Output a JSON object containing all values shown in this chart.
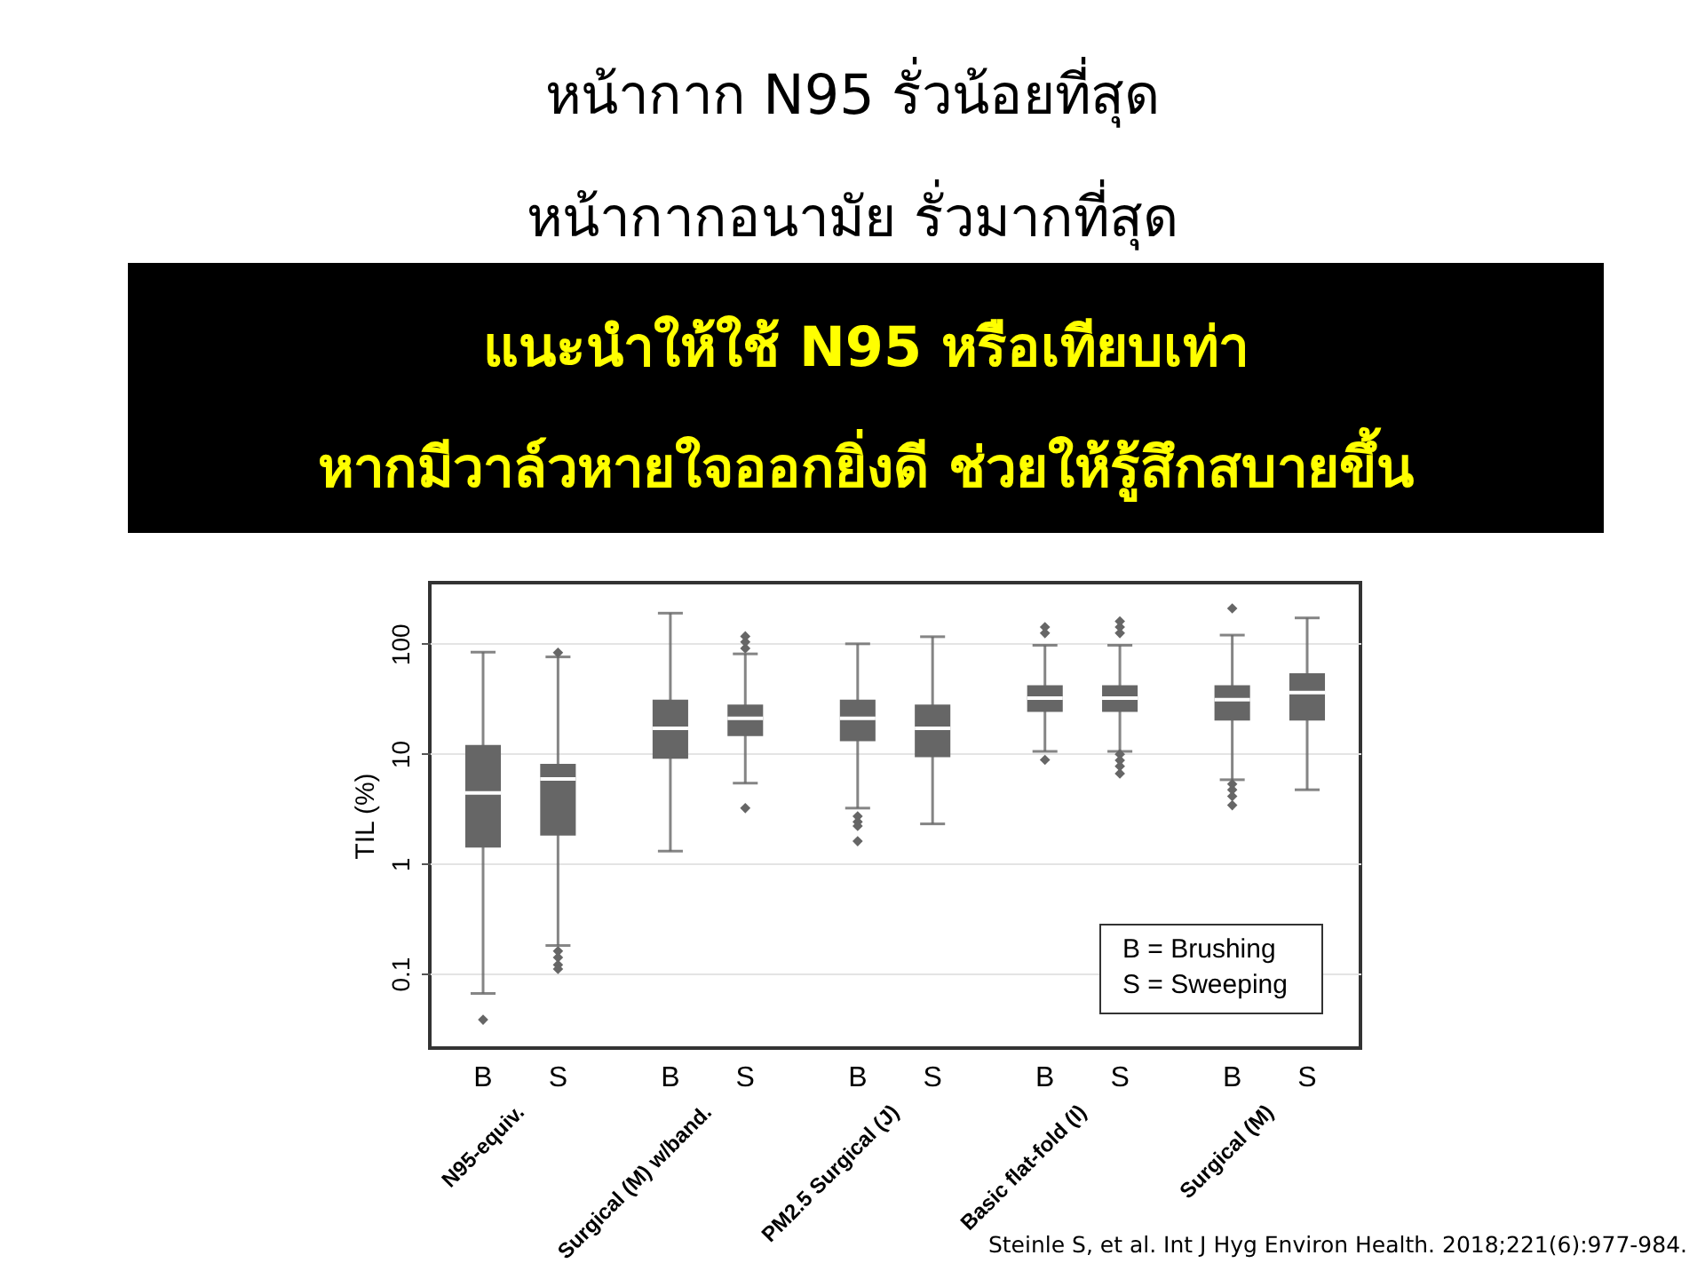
{
  "chart_data": {
    "type": "box",
    "title": "หน้ากาก N95 รั่วน้อยที่สุด",
    "subtitle": "หน้ากากอนามัย รั่วมากที่สุด",
    "ylabel": "TIL (%)",
    "categories": [
      "B",
      "S",
      "B",
      "S",
      "B",
      "S",
      "B",
      "S",
      "B",
      "S"
    ],
    "series": [
      {
        "color": "#666666",
        "boxes": [
          {
            "low": 0.066,
            "q1": 1.4,
            "median": 4.4,
            "q3": 12,
            "high": 84,
            "outliers": [
              0.038
            ]
          },
          {
            "low": 0.18,
            "q1": 1.8,
            "median": 5.9,
            "q3": 8.1,
            "high": 76,
            "outliers": [
              83,
              0.16,
              0.14,
              0.12,
              0.11
            ]
          },
          {
            "low": 1.3,
            "q1": 9,
            "median": 17,
            "q3": 31,
            "high": 190
          },
          {
            "low": 5.4,
            "q1": 14.5,
            "median": 21,
            "q3": 28,
            "high": 81,
            "outliers": [
              91,
              104,
              117,
              3.2
            ]
          },
          {
            "low": 3.2,
            "q1": 13,
            "median": 21,
            "q3": 31,
            "high": 100,
            "outliers": [
              2.7,
              2.4,
              2.2,
              1.6
            ]
          },
          {
            "low": 2.3,
            "q1": 9.3,
            "median": 17,
            "q3": 28,
            "high": 116
          },
          {
            "low": 10.5,
            "q1": 24,
            "median": 32,
            "q3": 42,
            "high": 97,
            "outliers": [
              8.8,
              125,
              142
            ]
          },
          {
            "low": 10.5,
            "q1": 24,
            "median": 32,
            "q3": 42,
            "high": 97,
            "outliers": [
              125,
              142,
              160,
              9.9,
              8.7,
              7.7,
              6.6
            ]
          },
          {
            "low": 5.8,
            "q1": 20,
            "median": 31,
            "q3": 42,
            "high": 120,
            "outliers": [
              5.3,
              4.7,
              4.1,
              3.4,
              210
            ]
          },
          {
            "low": 4.7,
            "q1": 20,
            "median": 36,
            "q3": 54,
            "high": 172
          }
        ]
      }
    ],
    "ylim": [
      0.021,
      360
    ],
    "yticks": [
      0.1,
      1,
      10,
      100
    ],
    "log": true,
    "grid": "y",
    "marker": "diamond",
    "annotations": [
      "แนะนำให้ใช้ N95 หรือเทียบเท่า",
      "หากมีวาล์วหายใจออกยิ่งดี ช่วยให้รู้สึกสบายขึ้น",
      "B = Brushing",
      "S = Sweeping",
      "N95-equiv.",
      "Surgical (M) w/band.",
      "PM2.5 Surgical (J)",
      "Basic flat-fold (I)",
      "Surgical (M)",
      "Steinle S, et al. Int J Hyg Environ Health. 2018;221(6):977-984."
    ]
  }
}
